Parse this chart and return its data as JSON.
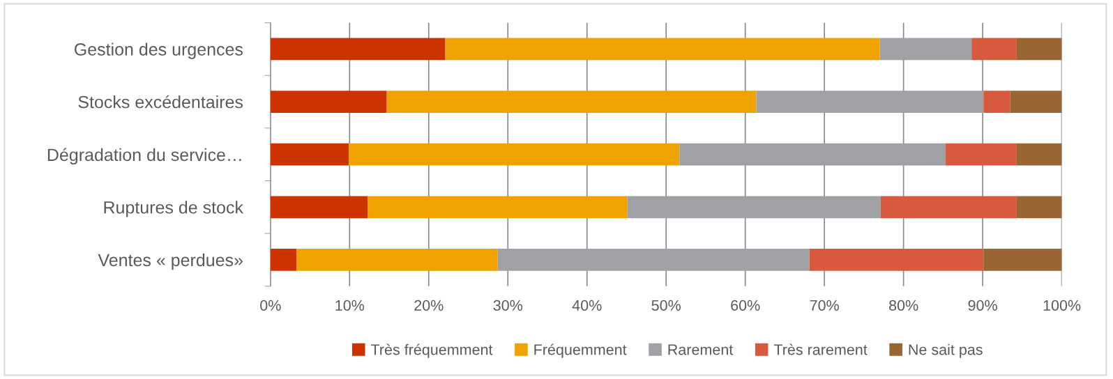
{
  "chart_data": {
    "type": "bar",
    "orientation": "horizontal",
    "stacked": true,
    "categories": [
      "Gestion des urgences",
      "Stocks excédentaires",
      "Dégradation du service…",
      "Ruptures de stock",
      "Ventes « perdues»"
    ],
    "series": [
      {
        "name": "Très fréquemment",
        "color": "#cc3300",
        "values": [
          22.1,
          14.7,
          9.9,
          12.3,
          3.3
        ]
      },
      {
        "name": "Fréquemment",
        "color": "#f0a300",
        "values": [
          54.9,
          46.7,
          41.8,
          32.8,
          25.4
        ]
      },
      {
        "name": "Rarement",
        "color": "#a0a1a4",
        "values": [
          11.6,
          28.7,
          33.6,
          32.0,
          39.4
        ]
      },
      {
        "name": "Très rarement",
        "color": "#d75a3e",
        "values": [
          5.7,
          3.4,
          9.0,
          17.2,
          22.0
        ]
      },
      {
        "name": "Ne sait pas",
        "color": "#996633",
        "values": [
          5.7,
          6.5,
          5.7,
          5.7,
          9.9
        ]
      }
    ],
    "xlim": [
      0,
      100
    ],
    "xticks": [
      {
        "value": 0,
        "label": "0%"
      },
      {
        "value": 10,
        "label": "10%"
      },
      {
        "value": 20,
        "label": "20%"
      },
      {
        "value": 30,
        "label": "30%"
      },
      {
        "value": 40,
        "label": "40%"
      },
      {
        "value": 50,
        "label": "50%"
      },
      {
        "value": 60,
        "label": "60%"
      },
      {
        "value": 70,
        "label": "70%"
      },
      {
        "value": 80,
        "label": "80%"
      },
      {
        "value": 90,
        "label": "90%"
      },
      {
        "value": 100,
        "label": "100%"
      }
    ],
    "grid": "x",
    "legend": "bottom"
  }
}
